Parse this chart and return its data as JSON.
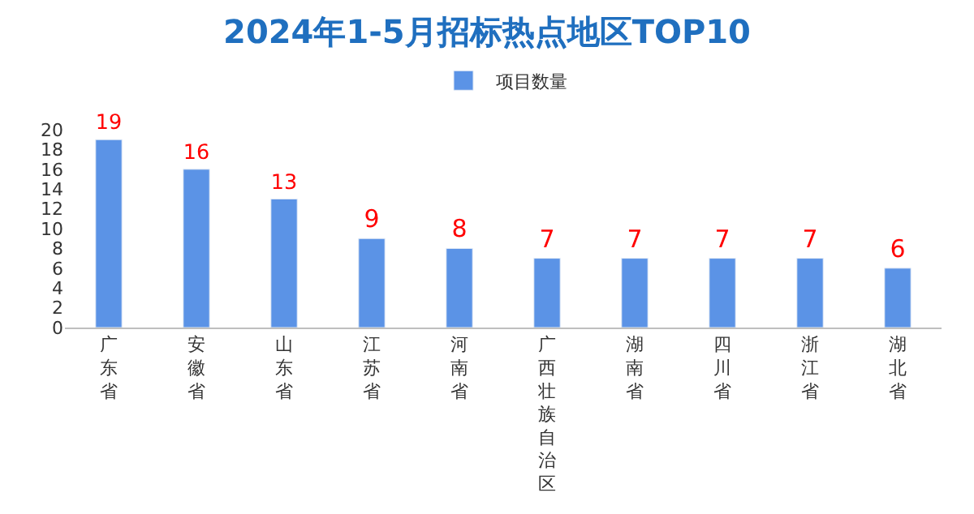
{
  "chart_data": {
    "type": "bar",
    "title": "2024年1-5月招标热点地区TOP10",
    "categories": [
      "广东省",
      "安徽省",
      "山东省",
      "江苏省",
      "河南省",
      "广西壮族自治区",
      "湖南省",
      "四川省",
      "浙江省",
      "湖北省"
    ],
    "series": [
      {
        "name": "项目数量",
        "color": "#5b93e6",
        "values": [
          19,
          16,
          13,
          9,
          8,
          7,
          7,
          7,
          7,
          6
        ]
      }
    ],
    "ylim": [
      0,
      20
    ],
    "yticks": [
      0,
      2,
      4,
      6,
      8,
      10,
      12,
      14,
      16,
      18,
      20
    ],
    "grid": false,
    "legend": "top",
    "data_labels": true
  }
}
